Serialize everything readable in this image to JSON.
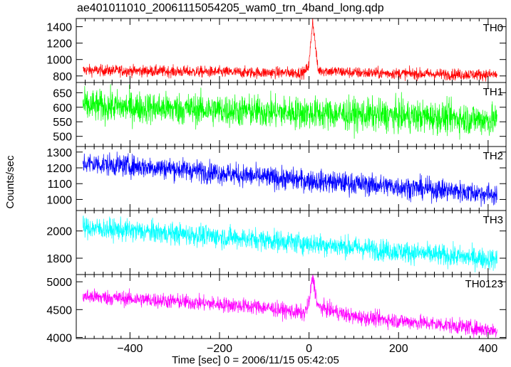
{
  "title": "ae401011010_20061115054205_wam0_trn_4band_long.qdp",
  "ylabel": "Counts/sec",
  "xlabel": "Time [sec] 0 = 2006/11/15 05:42:05",
  "chart_data": {
    "type": "line",
    "xlim": [
      -520,
      440
    ],
    "x_ticks": [
      -400,
      -200,
      0,
      200,
      400
    ],
    "x_tick_labels": [
      "−400",
      "−200",
      "0",
      "200",
      "400"
    ],
    "grid": false,
    "panels": [
      {
        "name": "TH0",
        "color": "#ff0000",
        "ylim": [
          720,
          1500
        ],
        "y_ticks": [
          800,
          1000,
          1200,
          1400
        ],
        "trend": [
          [
            -505,
            870
          ],
          [
            -300,
            855
          ],
          [
            -100,
            840
          ],
          [
            -10,
            840
          ],
          [
            0,
            940
          ],
          [
            8,
            1480
          ],
          [
            20,
            870
          ],
          [
            100,
            840
          ],
          [
            300,
            820
          ],
          [
            420,
            815
          ]
        ],
        "noise": 35
      },
      {
        "name": "TH1",
        "color": "#00ff00",
        "ylim": [
          465,
          685
        ],
        "y_ticks": [
          500,
          550,
          600,
          650
        ],
        "trend": [
          [
            -505,
            605
          ],
          [
            -300,
            595
          ],
          [
            -100,
            585
          ],
          [
            100,
            575
          ],
          [
            300,
            565
          ],
          [
            420,
            555
          ]
        ],
        "noise": 28
      },
      {
        "name": "TH2",
        "color": "#0000ff",
        "ylim": [
          930,
          1335
        ],
        "y_ticks": [
          1000,
          1100,
          1200,
          1300
        ],
        "trend": [
          [
            -505,
            1230
          ],
          [
            -300,
            1195
          ],
          [
            -100,
            1140
          ],
          [
            100,
            1100
          ],
          [
            300,
            1060
          ],
          [
            420,
            1030
          ]
        ],
        "noise": 35
      },
      {
        "name": "TH3",
        "color": "#00ffff",
        "ylim": [
          1680,
          2150
        ],
        "y_ticks": [
          1800,
          2000
        ],
        "trend": [
          [
            -505,
            2025
          ],
          [
            -300,
            1980
          ],
          [
            -100,
            1935
          ],
          [
            100,
            1880
          ],
          [
            300,
            1820
          ],
          [
            420,
            1790
          ]
        ],
        "noise": 40
      },
      {
        "name": "TH0123",
        "color": "#ff00ff",
        "ylim": [
          3980,
          5130
        ],
        "y_ticks": [
          4000,
          4500,
          5000
        ],
        "trend": [
          [
            -505,
            4740
          ],
          [
            -300,
            4650
          ],
          [
            -100,
            4540
          ],
          [
            -10,
            4430
          ],
          [
            0,
            4620
          ],
          [
            8,
            5100
          ],
          [
            20,
            4550
          ],
          [
            100,
            4370
          ],
          [
            300,
            4230
          ],
          [
            420,
            4120
          ]
        ],
        "noise": 70
      }
    ]
  }
}
